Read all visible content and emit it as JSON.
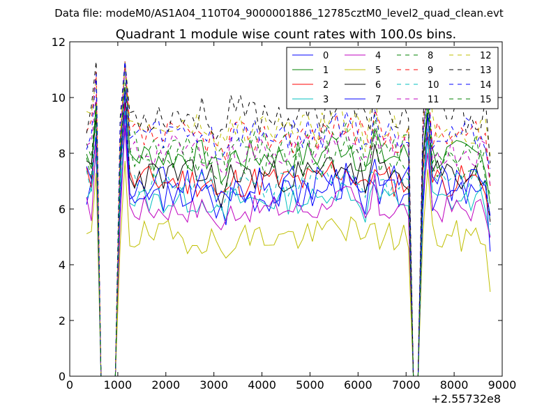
{
  "figure": {
    "suptitle": "Data file: modeM0/AS1A04_110T04_9000001886_12785cztM0_level2_quad_clean.evt"
  },
  "chart_data": {
    "type": "line",
    "title": "Quadrant 1 module wise count rates with 100.0s bins.",
    "xlabel": "",
    "ylabel": "",
    "x_offset_label": "+2.55732e8",
    "xlim": [
      0,
      9000
    ],
    "ylim": [
      0,
      12
    ],
    "xticks": [
      0,
      1000,
      2000,
      3000,
      4000,
      5000,
      6000,
      7000,
      8000,
      9000
    ],
    "xtick_labels": [
      "0",
      "1000",
      "2000",
      "3000",
      "4000",
      "5000",
      "6000",
      "7000",
      "8000",
      "9000"
    ],
    "yticks": [
      0,
      2,
      4,
      6,
      8,
      10,
      12
    ],
    "ytick_labels": [
      "0",
      "2",
      "4",
      "6",
      "8",
      "10",
      "12"
    ],
    "grid": false,
    "legend_position": "top-right",
    "legend_columns": 4,
    "x": [
      350,
      450,
      550,
      650,
      750,
      850,
      950,
      1050,
      1150,
      1250,
      1350,
      1450,
      1550,
      1650,
      1750,
      1850,
      1950,
      2050,
      2150,
      2250,
      2350,
      2450,
      2550,
      2650,
      2750,
      2850,
      2950,
      3050,
      3150,
      3250,
      3350,
      3450,
      3550,
      3650,
      3750,
      3850,
      3950,
      4050,
      4150,
      4250,
      4350,
      4450,
      4550,
      4650,
      4750,
      4850,
      4950,
      5050,
      5150,
      5250,
      5350,
      5450,
      5550,
      5650,
      5750,
      5850,
      5950,
      6050,
      6150,
      6250,
      6350,
      6450,
      6550,
      6650,
      6750,
      6850,
      6950,
      7050,
      7150,
      7250,
      7350,
      7450,
      7550,
      7650,
      7750,
      7850,
      7950,
      8050,
      8150,
      8250,
      8350,
      8450,
      8550,
      8650,
      8750
    ],
    "series": [
      {
        "name": "0",
        "color": "#0000ff",
        "dash": "solid",
        "base": 6.5,
        "amp": 0.6,
        "seed": 3
      },
      {
        "name": "1",
        "color": "#008000",
        "dash": "solid",
        "base": 7.9,
        "amp": 0.6,
        "seed": 7
      },
      {
        "name": "2",
        "color": "#ff0000",
        "dash": "solid",
        "base": 7.0,
        "amp": 0.6,
        "seed": 11
      },
      {
        "name": "3",
        "color": "#00bfbf",
        "dash": "solid",
        "base": 6.3,
        "amp": 0.5,
        "seed": 13
      },
      {
        "name": "4",
        "color": "#bf00bf",
        "dash": "solid",
        "base": 6.0,
        "amp": 0.5,
        "seed": 17
      },
      {
        "name": "5",
        "color": "#bfbf00",
        "dash": "solid",
        "base": 5.0,
        "amp": 0.6,
        "seed": 19
      },
      {
        "name": "6",
        "color": "#000000",
        "dash": "solid",
        "base": 7.2,
        "amp": 0.6,
        "seed": 23
      },
      {
        "name": "7",
        "color": "#0000ff",
        "dash": "solid",
        "base": 6.9,
        "amp": 0.7,
        "seed": 29
      },
      {
        "name": "8",
        "color": "#008000",
        "dash": "dashed",
        "base": 8.2,
        "amp": 0.6,
        "seed": 31
      },
      {
        "name": "9",
        "color": "#ff0000",
        "dash": "dashed",
        "base": 8.6,
        "amp": 0.6,
        "seed": 37
      },
      {
        "name": "10",
        "color": "#00bfbf",
        "dash": "dashed",
        "base": 6.9,
        "amp": 0.5,
        "seed": 41
      },
      {
        "name": "11",
        "color": "#bf00bf",
        "dash": "dashed",
        "base": 8.1,
        "amp": 0.6,
        "seed": 43
      },
      {
        "name": "12",
        "color": "#bfbf00",
        "dash": "dashed",
        "base": 8.9,
        "amp": 0.6,
        "seed": 47
      },
      {
        "name": "13",
        "color": "#000000",
        "dash": "dashed",
        "base": 9.4,
        "amp": 0.7,
        "seed": 53
      },
      {
        "name": "14",
        "color": "#0000ff",
        "dash": "dashed",
        "base": 8.7,
        "amp": 0.6,
        "seed": 59
      },
      {
        "name": "15",
        "color": "#008000",
        "dash": "dashed",
        "base": 7.6,
        "amp": 0.6,
        "seed": 61
      }
    ],
    "zero_bins_x": [
      650,
      750,
      850,
      950,
      7150,
      7250
    ],
    "spike_bins_x": [
      1150,
      550,
      7450
    ]
  }
}
